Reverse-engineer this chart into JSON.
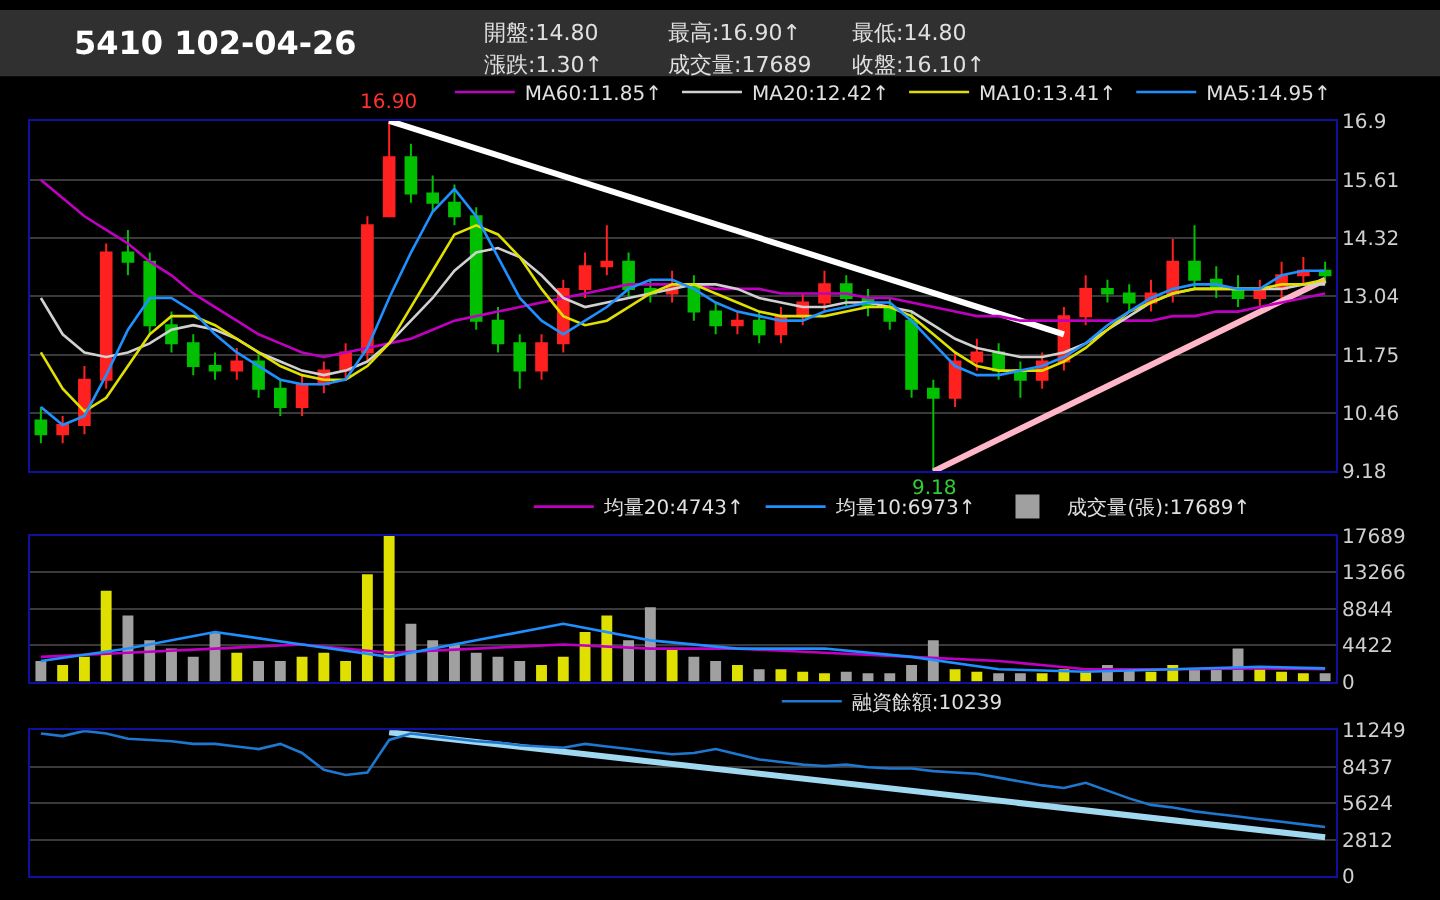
{
  "chart_data": [
    {
      "type": "candlestick",
      "title": "5410 102-04-26",
      "annotations": [
        "開盤:14.80",
        "漲跌:1.30↑",
        "最高:16.90↑",
        "成交量:17689",
        "最低:14.80",
        "收盤:16.10↑",
        {
          "text": "16.90",
          "y": 16.9
        },
        {
          "text": "9.18",
          "y": 9.18
        }
      ],
      "categories": [
        null,
        null,
        null,
        null,
        null,
        null,
        null,
        null,
        null,
        null,
        null,
        null,
        null,
        null,
        null,
        null,
        null,
        null,
        null,
        null,
        null,
        null,
        null,
        null,
        null,
        null,
        null,
        null,
        null,
        null,
        null,
        null,
        null,
        null,
        null,
        null,
        null,
        null,
        null,
        null,
        null,
        null,
        null,
        null,
        null,
        null,
        null,
        null,
        null,
        null,
        null,
        null,
        null,
        null,
        null,
        null,
        null,
        null,
        null,
        null
      ],
      "ohlc": [
        [
          10.3,
          10.6,
          9.8,
          10.0
        ],
        [
          10.0,
          10.4,
          9.8,
          10.2
        ],
        [
          10.2,
          11.5,
          10.0,
          11.2
        ],
        [
          11.2,
          14.2,
          11.0,
          14.0
        ],
        [
          14.0,
          14.5,
          13.5,
          13.8
        ],
        [
          13.8,
          14.0,
          12.2,
          12.4
        ],
        [
          12.4,
          12.7,
          11.8,
          12.0
        ],
        [
          12.0,
          12.2,
          11.3,
          11.5
        ],
        [
          11.5,
          11.8,
          11.2,
          11.4
        ],
        [
          11.4,
          11.9,
          11.2,
          11.6
        ],
        [
          11.6,
          11.8,
          10.8,
          11.0
        ],
        [
          11.0,
          11.2,
          10.4,
          10.6
        ],
        [
          10.6,
          11.3,
          10.4,
          11.1
        ],
        [
          11.1,
          11.6,
          10.9,
          11.4
        ],
        [
          11.4,
          12.0,
          11.2,
          11.8
        ],
        [
          11.8,
          14.8,
          11.6,
          14.6
        ],
        [
          14.8,
          16.9,
          14.8,
          16.1
        ],
        [
          16.1,
          16.4,
          15.1,
          15.3
        ],
        [
          15.3,
          15.7,
          14.9,
          15.1
        ],
        [
          15.1,
          15.5,
          14.6,
          14.8
        ],
        [
          14.8,
          15.0,
          12.3,
          12.5
        ],
        [
          12.5,
          12.8,
          11.8,
          12.0
        ],
        [
          12.0,
          12.2,
          11.0,
          11.4
        ],
        [
          11.4,
          12.2,
          11.2,
          12.0
        ],
        [
          12.0,
          13.4,
          11.8,
          13.2
        ],
        [
          13.2,
          14.0,
          13.0,
          13.7
        ],
        [
          13.7,
          14.6,
          13.5,
          13.8
        ],
        [
          13.8,
          14.0,
          13.0,
          13.2
        ],
        [
          13.2,
          13.4,
          12.9,
          13.1
        ],
        [
          13.1,
          13.6,
          12.9,
          13.3
        ],
        [
          13.3,
          13.5,
          12.5,
          12.7
        ],
        [
          12.7,
          12.9,
          12.2,
          12.4
        ],
        [
          12.4,
          12.7,
          12.2,
          12.5
        ],
        [
          12.5,
          12.7,
          12.0,
          12.2
        ],
        [
          12.2,
          12.8,
          12.0,
          12.6
        ],
        [
          12.6,
          13.1,
          12.4,
          12.9
        ],
        [
          12.9,
          13.6,
          12.7,
          13.3
        ],
        [
          13.3,
          13.5,
          12.8,
          13.0
        ],
        [
          13.0,
          13.2,
          12.6,
          12.8
        ],
        [
          12.8,
          13.0,
          12.3,
          12.5
        ],
        [
          12.5,
          12.7,
          10.8,
          11.0
        ],
        [
          11.0,
          11.2,
          9.18,
          10.8
        ],
        [
          10.8,
          11.8,
          10.6,
          11.6
        ],
        [
          11.6,
          12.1,
          11.4,
          11.8
        ],
        [
          11.8,
          12.0,
          11.2,
          11.4
        ],
        [
          11.4,
          11.6,
          10.8,
          11.2
        ],
        [
          11.2,
          11.8,
          11.0,
          11.6
        ],
        [
          11.6,
          12.8,
          11.4,
          12.6
        ],
        [
          12.6,
          13.5,
          12.4,
          13.2
        ],
        [
          13.2,
          13.4,
          12.9,
          13.1
        ],
        [
          13.1,
          13.3,
          12.7,
          12.9
        ],
        [
          12.9,
          13.4,
          12.7,
          13.1
        ],
        [
          13.1,
          14.3,
          12.9,
          13.8
        ],
        [
          13.8,
          14.6,
          13.2,
          13.4
        ],
        [
          13.4,
          13.7,
          13.0,
          13.2
        ],
        [
          13.2,
          13.5,
          12.8,
          13.0
        ],
        [
          13.0,
          13.4,
          12.8,
          13.2
        ],
        [
          13.2,
          13.8,
          13.0,
          13.5
        ],
        [
          13.5,
          13.9,
          13.3,
          13.6
        ],
        [
          13.6,
          13.8,
          13.3,
          13.5
        ]
      ],
      "colors": [
        "#00c000",
        "#ff2020",
        "#ff2020",
        "#ff2020",
        "#00c000",
        "#00c000",
        "#00c000",
        "#00c000",
        "#00c000",
        "#ff2020",
        "#00c000",
        "#00c000",
        "#ff2020",
        "#ff2020",
        "#ff2020",
        "#ff2020",
        "#ff2020",
        "#00c000",
        "#00c000",
        "#00c000",
        "#00c000",
        "#00c000",
        "#00c000",
        "#ff2020",
        "#ff2020",
        "#ff2020",
        "#ff2020",
        "#00c000",
        "#00c000",
        "#ff2020",
        "#00c000",
        "#00c000",
        "#ff2020",
        "#00c000",
        "#ff2020",
        "#ff2020",
        "#ff2020",
        "#00c000",
        "#00c000",
        "#00c000",
        "#00c000",
        "#00c000",
        "#ff2020",
        "#ff2020",
        "#00c000",
        "#00c000",
        "#ff2020",
        "#ff2020",
        "#ff2020",
        "#00c000",
        "#00c000",
        "#ff2020",
        "#ff2020",
        "#00c000",
        "#00c000",
        "#00c000",
        "#ff2020",
        "#ff2020",
        "#ff2020",
        "#00c000"
      ],
      "series": [
        {
          "name": "MA5:14.95↑",
          "type": "line",
          "color": "#1e90ff",
          "values": [
            10.6,
            10.2,
            10.4,
            11.3,
            12.3,
            13.0,
            13.0,
            12.7,
            12.2,
            11.8,
            11.5,
            11.2,
            11.1,
            11.1,
            11.2,
            11.9,
            13.0,
            14.0,
            14.9,
            15.4,
            14.8,
            13.9,
            13.0,
            12.5,
            12.2,
            12.5,
            12.8,
            13.2,
            13.4,
            13.4,
            13.2,
            12.9,
            12.7,
            12.6,
            12.5,
            12.5,
            12.7,
            12.8,
            12.9,
            12.9,
            12.5,
            12.0,
            11.5,
            11.3,
            11.3,
            11.4,
            11.5,
            11.7,
            12.0,
            12.4,
            12.7,
            13.0,
            13.2,
            13.3,
            13.3,
            13.2,
            13.2,
            13.5,
            13.6,
            13.6
          ]
        },
        {
          "name": "MA10:13.41↑",
          "type": "line",
          "color": "#e0e000",
          "values": [
            11.8,
            11.0,
            10.5,
            10.8,
            11.5,
            12.2,
            12.6,
            12.6,
            12.4,
            12.1,
            11.8,
            11.5,
            11.3,
            11.2,
            11.2,
            11.5,
            12.0,
            12.8,
            13.6,
            14.4,
            14.6,
            14.4,
            13.9,
            13.2,
            12.6,
            12.4,
            12.5,
            12.8,
            13.1,
            13.3,
            13.3,
            13.1,
            12.9,
            12.7,
            12.6,
            12.6,
            12.6,
            12.7,
            12.8,
            12.8,
            12.6,
            12.2,
            11.8,
            11.5,
            11.4,
            11.4,
            11.4,
            11.6,
            11.9,
            12.3,
            12.7,
            12.9,
            13.1,
            13.2,
            13.2,
            13.2,
            13.2,
            13.3,
            13.3,
            13.4
          ]
        },
        {
          "name": "MA20:12.42↑",
          "type": "line",
          "color": "#d0d0d0",
          "values": [
            13.0,
            12.2,
            11.8,
            11.7,
            11.8,
            12.0,
            12.3,
            12.4,
            12.3,
            12.1,
            11.8,
            11.6,
            11.4,
            11.3,
            11.4,
            11.6,
            12.0,
            12.5,
            13.0,
            13.6,
            14.0,
            14.1,
            13.9,
            13.5,
            13.0,
            12.8,
            12.9,
            13.0,
            13.1,
            13.2,
            13.3,
            13.3,
            13.2,
            13.0,
            12.9,
            12.8,
            12.8,
            12.9,
            12.9,
            12.8,
            12.7,
            12.4,
            12.1,
            11.9,
            11.8,
            11.7,
            11.7,
            11.8,
            12.0,
            12.3,
            12.6,
            12.9,
            13.1,
            13.2,
            13.2,
            13.2,
            13.2,
            13.2,
            13.3,
            13.3
          ]
        },
        {
          "name": "MA60:11.85↑",
          "type": "line",
          "color": "#c000c0",
          "values": [
            15.6,
            15.2,
            14.8,
            14.5,
            14.2,
            13.8,
            13.5,
            13.1,
            12.8,
            12.5,
            12.2,
            12.0,
            11.8,
            11.7,
            11.8,
            11.9,
            12.0,
            12.1,
            12.3,
            12.5,
            12.6,
            12.7,
            12.8,
            12.9,
            13.0,
            13.1,
            13.2,
            13.3,
            13.3,
            13.3,
            13.3,
            13.2,
            13.2,
            13.2,
            13.1,
            13.1,
            13.1,
            13.1,
            13.0,
            13.0,
            12.9,
            12.8,
            12.7,
            12.6,
            12.6,
            12.5,
            12.5,
            12.5,
            12.5,
            12.5,
            12.5,
            12.5,
            12.6,
            12.6,
            12.7,
            12.7,
            12.8,
            12.9,
            13.0,
            13.1
          ]
        },
        {
          "type": "line",
          "color": "#ffffff",
          "values": [
            null,
            null,
            null,
            null,
            null,
            null,
            null,
            null,
            null,
            null,
            null,
            null,
            null,
            null,
            null,
            null,
            16.9,
            null,
            null,
            null,
            null,
            null,
            null,
            null,
            null,
            null,
            null,
            null,
            null,
            null,
            null,
            null,
            null,
            null,
            null,
            null,
            null,
            null,
            null,
            null,
            null,
            null,
            null,
            null,
            null,
            null,
            null,
            12.2,
            null,
            null,
            null,
            null,
            null,
            null,
            null,
            null,
            null,
            null,
            null,
            null
          ]
        },
        {
          "type": "line",
          "color": "#ffb6c8",
          "values": [
            null,
            null,
            null,
            null,
            null,
            null,
            null,
            null,
            null,
            null,
            null,
            null,
            null,
            null,
            null,
            null,
            null,
            null,
            null,
            null,
            null,
            null,
            null,
            null,
            null,
            null,
            null,
            null,
            null,
            null,
            null,
            null,
            null,
            null,
            null,
            null,
            null,
            null,
            null,
            null,
            null,
            9.18,
            null,
            null,
            null,
            null,
            null,
            null,
            null,
            null,
            null,
            null,
            null,
            null,
            null,
            null,
            null,
            null,
            null,
            13.4
          ]
        }
      ],
      "ylim": [
        9.18,
        16.9
      ],
      "yticks": [
        9.18,
        10.46,
        11.75,
        13.04,
        14.32,
        15.61,
        16.9
      ],
      "grid": "y",
      "legend": "top",
      "marker": "none",
      "tick_labels": "y"
    },
    {
      "type": "bar",
      "categories": [
        null,
        null,
        null,
        null,
        null,
        null,
        null,
        null,
        null,
        null,
        null,
        null,
        null,
        null,
        null,
        null,
        null,
        null,
        null,
        null,
        null,
        null,
        null,
        null,
        null,
        null,
        null,
        null,
        null,
        null,
        null,
        null,
        null,
        null,
        null,
        null,
        null,
        null,
        null,
        null,
        null,
        null,
        null,
        null,
        null,
        null,
        null,
        null,
        null,
        null,
        null,
        null,
        null,
        null,
        null,
        null,
        null,
        null,
        null,
        null
      ],
      "series": [
        {
          "name": "成交量(張):17689↑",
          "type": "bar",
          "colors": [
            "#a0a0a0",
            "#e0e000",
            "#e0e000",
            "#e0e000",
            "#a0a0a0",
            "#a0a0a0",
            "#a0a0a0",
            "#a0a0a0",
            "#a0a0a0",
            "#e0e000",
            "#a0a0a0",
            "#a0a0a0",
            "#e0e000",
            "#e0e000",
            "#e0e000",
            "#e0e000",
            "#e0e000",
            "#a0a0a0",
            "#a0a0a0",
            "#a0a0a0",
            "#a0a0a0",
            "#a0a0a0",
            "#a0a0a0",
            "#e0e000",
            "#e0e000",
            "#e0e000",
            "#e0e000",
            "#a0a0a0",
            "#a0a0a0",
            "#e0e000",
            "#a0a0a0",
            "#a0a0a0",
            "#e0e000",
            "#a0a0a0",
            "#e0e000",
            "#e0e000",
            "#e0e000",
            "#a0a0a0",
            "#a0a0a0",
            "#a0a0a0",
            "#a0a0a0",
            "#a0a0a0",
            "#e0e000",
            "#e0e000",
            "#a0a0a0",
            "#a0a0a0",
            "#e0e000",
            "#e0e000",
            "#e0e000",
            "#a0a0a0",
            "#a0a0a0",
            "#e0e000",
            "#e0e000",
            "#a0a0a0",
            "#a0a0a0",
            "#a0a0a0",
            "#e0e000",
            "#e0e000",
            "#e0e000",
            "#a0a0a0"
          ],
          "values": [
            2500,
            2000,
            3000,
            11000,
            8000,
            5000,
            4000,
            3000,
            6000,
            3500,
            2500,
            2500,
            3000,
            3500,
            2500,
            13000,
            17689,
            7000,
            5000,
            4500,
            3500,
            3000,
            2500,
            2000,
            3000,
            6000,
            8000,
            5000,
            9000,
            4000,
            3000,
            2500,
            2000,
            1500,
            1500,
            1200,
            1000,
            1200,
            1000,
            1000,
            2000,
            5000,
            1500,
            1200,
            1000,
            1000,
            1000,
            1500,
            1200,
            2000,
            1500,
            1200,
            2000,
            1500,
            1500,
            4000,
            1500,
            1200,
            1000,
            1000
          ]
        },
        {
          "name": "均量10:6973↑",
          "type": "line",
          "color": "#1e90ff",
          "values": [
            2500,
            null,
            null,
            null,
            4000,
            null,
            null,
            null,
            6000,
            null,
            null,
            null,
            4500,
            null,
            null,
            null,
            3000,
            null,
            null,
            null,
            5000,
            null,
            null,
            null,
            7000,
            null,
            null,
            null,
            5000,
            null,
            null,
            null,
            4000,
            null,
            null,
            null,
            4000,
            null,
            null,
            null,
            3000,
            null,
            null,
            null,
            1500,
            null,
            null,
            null,
            1200,
            null,
            null,
            null,
            1500,
            null,
            null,
            null,
            1800,
            null,
            null,
            1600
          ]
        },
        {
          "name": "均量20:4743↑",
          "type": "line",
          "color": "#c000c0",
          "values": [
            3000,
            null,
            null,
            null,
            3500,
            null,
            null,
            null,
            4000,
            null,
            null,
            null,
            4500,
            null,
            null,
            null,
            3500,
            null,
            null,
            null,
            4000,
            null,
            null,
            null,
            4500,
            null,
            null,
            null,
            4000,
            null,
            null,
            null,
            4000,
            null,
            null,
            null,
            3500,
            null,
            null,
            null,
            3000,
            null,
            null,
            null,
            2500,
            null,
            null,
            null,
            1500,
            null,
            null,
            null,
            1500,
            null,
            null,
            null,
            1600,
            null,
            null,
            1500
          ]
        }
      ],
      "ylim": [
        0,
        17689
      ],
      "yticks": [
        0,
        4422,
        8844,
        13266,
        17689
      ],
      "grid": "y",
      "legend": "top",
      "marker": "none",
      "tick_labels": "y"
    },
    {
      "type": "line",
      "categories": [
        null,
        null,
        null,
        null,
        null,
        null,
        null,
        null,
        null,
        null,
        null,
        null,
        null,
        null,
        null,
        null,
        null,
        null,
        null,
        null,
        null,
        null,
        null,
        null,
        null,
        null,
        null,
        null,
        null,
        null,
        null,
        null,
        null,
        null,
        null,
        null,
        null,
        null,
        null,
        null,
        null,
        null,
        null,
        null,
        null,
        null,
        null,
        null,
        null,
        null,
        null,
        null,
        null,
        null,
        null,
        null,
        null,
        null,
        null,
        null
      ],
      "series": [
        {
          "name": "融資餘額:10239",
          "color": "#1e78d0",
          "values": [
            11000,
            10800,
            11200,
            11000,
            10600,
            10500,
            10400,
            10200,
            10200,
            10000,
            9800,
            10200,
            9500,
            8200,
            7800,
            8000,
            10500,
            11000,
            10800,
            10600,
            10400,
            10300,
            10100,
            10000,
            9900,
            10200,
            10000,
            9800,
            9600,
            9400,
            9500,
            9800,
            9400,
            9000,
            8800,
            8600,
            8500,
            8600,
            8400,
            8300,
            8300,
            8100,
            8000,
            7900,
            7600,
            7300,
            7000,
            6800,
            7200,
            6600,
            6000,
            5500,
            5300,
            5000,
            4800,
            4600,
            4400,
            4200,
            4000,
            3800
          ]
        },
        {
          "type": "line",
          "color": "#a0d8f0",
          "values": [
            null,
            null,
            null,
            null,
            null,
            null,
            null,
            null,
            null,
            null,
            null,
            null,
            null,
            null,
            null,
            null,
            11100,
            null,
            null,
            null,
            null,
            null,
            null,
            null,
            null,
            null,
            null,
            null,
            null,
            null,
            null,
            null,
            null,
            null,
            null,
            null,
            null,
            null,
            null,
            null,
            null,
            null,
            null,
            null,
            null,
            null,
            null,
            null,
            null,
            null,
            null,
            null,
            null,
            null,
            null,
            null,
            null,
            null,
            null,
            3000
          ]
        }
      ],
      "ylim": [
        0,
        11249
      ],
      "yticks": [
        0,
        2812,
        5624,
        8437,
        11249
      ],
      "grid": "y",
      "legend": "top",
      "marker": "none",
      "tick_labels": "y"
    }
  ]
}
